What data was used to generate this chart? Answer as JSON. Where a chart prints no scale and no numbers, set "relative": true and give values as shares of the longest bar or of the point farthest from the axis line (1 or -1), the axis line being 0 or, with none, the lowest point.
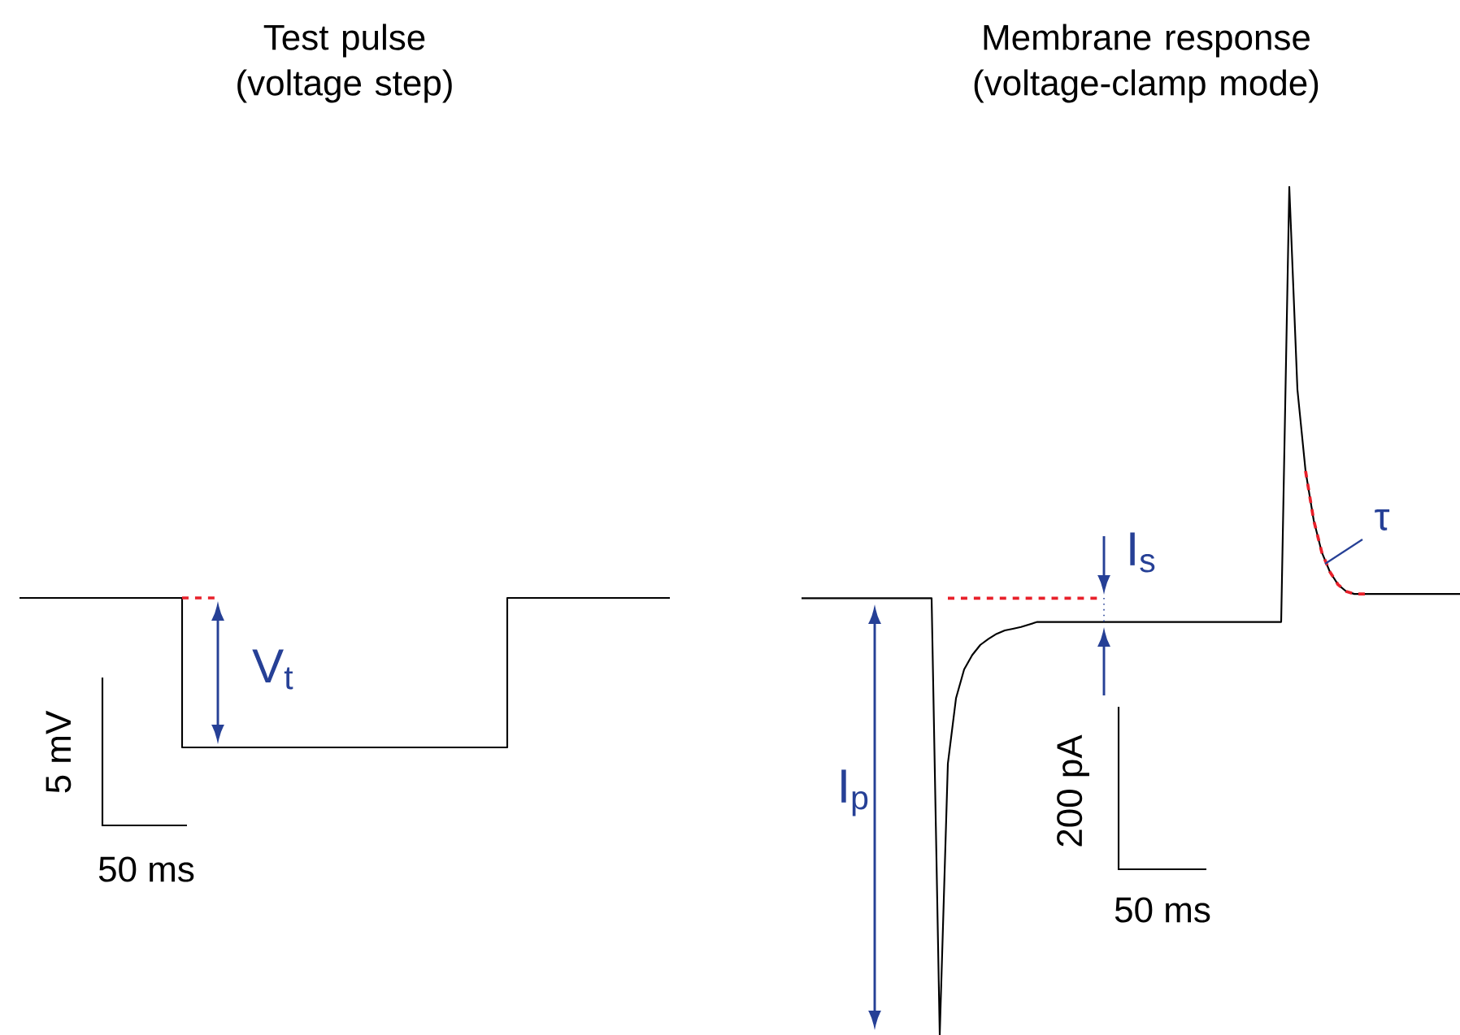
{
  "chart_data": [
    {
      "type": "line",
      "title": "Test pulse (voltage step)",
      "relative": true,
      "categories": [
        null,
        null,
        null,
        null,
        null,
        null,
        null,
        null,
        null,
        null,
        null,
        null,
        null,
        null,
        null,
        null,
        null,
        null,
        null,
        null,
        null
      ],
      "series": [
        {
          "type": "step",
          "color": "#000000",
          "line_style": "solid",
          "values": [
            1,
            1,
            1,
            1,
            1,
            0,
            0,
            0,
            0,
            0,
            0,
            0,
            0,
            0,
            0,
            1,
            1,
            1,
            1,
            1,
            1
          ]
        },
        {
          "type": "line",
          "color": "#e8202a",
          "line_style": "dashed",
          "values": [
            null,
            null,
            null,
            null,
            null,
            1,
            1,
            null,
            null,
            null,
            null,
            null,
            null,
            null,
            null,
            null,
            null,
            null,
            null,
            null,
            null
          ]
        }
      ],
      "annotations": [
        "V$_{t}$",
        "5 mV",
        "50 ms"
      ]
    },
    {
      "type": "line",
      "title": "Membrane response (voltage-clamp mode)",
      "relative": true,
      "categories": [
        null,
        null,
        null,
        null,
        null,
        null,
        null,
        null,
        null,
        null,
        null,
        null,
        null,
        null,
        null,
        null,
        null,
        null,
        null,
        null,
        null,
        null,
        null,
        null,
        null,
        null,
        null,
        null,
        null,
        null,
        null,
        null,
        null,
        null,
        null,
        null,
        null,
        null,
        null,
        null,
        null,
        null,
        null,
        null,
        null,
        null,
        null,
        null,
        null,
        null,
        null,
        null,
        null,
        null,
        null,
        null,
        null,
        null,
        null,
        null,
        null,
        null,
        null,
        null,
        null,
        null,
        null,
        null,
        null,
        null,
        null,
        null,
        null,
        null,
        null,
        null,
        null,
        null,
        null,
        null,
        null,
        null
      ],
      "series": [
        {
          "type": "line",
          "color": "#000000",
          "line_style": "solid",
          "values": [
            0.515,
            0.515,
            0.515,
            0.515,
            0.515,
            0.515,
            0.515,
            0.515,
            0.515,
            0.515,
            0.515,
            0.515,
            0.515,
            0.515,
            0.515,
            0.515,
            0.515,
            0,
            0.32,
            0.397,
            0.431,
            0.448,
            0.46,
            0.467,
            0.473,
            0.477,
            0.479,
            0.481,
            0.484,
            0.487,
            0.487,
            0.487,
            0.487,
            0.487,
            0.487,
            0.487,
            0.487,
            0.487,
            0.487,
            0.487,
            0.487,
            0.487,
            0.487,
            0.487,
            0.487,
            0.487,
            0.487,
            0.487,
            0.487,
            0.487,
            0.487,
            0.487,
            0.487,
            0.487,
            0.487,
            0.487,
            0.487,
            0.487,
            0.487,
            0.487,
            1,
            0.761,
            0.665,
            0.607,
            0.569,
            0.546,
            0.531,
            0.523,
            0.52,
            0.52,
            0.52,
            0.52,
            0.52,
            0.52,
            0.52,
            0.52,
            0.52,
            0.52,
            0.52,
            0.52,
            0.52,
            0.52
          ]
        },
        {
          "type": "line",
          "color": "#e8202a",
          "line_style": "dashed",
          "values": [
            null,
            null,
            null,
            null,
            null,
            null,
            null,
            null,
            null,
            null,
            null,
            null,
            null,
            null,
            null,
            null,
            null,
            null,
            null,
            null,
            null,
            null,
            null,
            null,
            null,
            null,
            null,
            null,
            null,
            null,
            null,
            null,
            null,
            null,
            null,
            null,
            null,
            null,
            null,
            null,
            null,
            null,
            null,
            null,
            null,
            null,
            null,
            null,
            null,
            null,
            null,
            null,
            null,
            null,
            null,
            null,
            null,
            null,
            null,
            null,
            null,
            null,
            0.665,
            0.607,
            0.569,
            0.546,
            0.531,
            0.523,
            0.52,
            0.52,
            0.52,
            null,
            null,
            null,
            null,
            null,
            null,
            null,
            null,
            null,
            null,
            null
          ]
        },
        {
          "type": "line",
          "color": "#e8202a",
          "line_style": "dashed",
          "values": [
            null,
            null,
            null,
            null,
            null,
            null,
            null,
            null,
            null,
            null,
            null,
            null,
            null,
            null,
            null,
            null,
            null,
            null,
            0.515,
            0.515,
            0.515,
            0.515,
            0.515,
            0.515,
            0.515,
            0.515,
            0.515,
            0.515,
            0.515,
            0.515,
            0.515,
            0.515,
            0.515,
            0.515,
            0.515,
            0.515,
            0.515,
            0.515,
            null,
            null,
            null,
            null,
            null,
            null,
            null,
            null,
            null,
            null,
            null,
            null,
            null,
            null,
            null,
            null,
            null,
            null,
            null,
            null,
            null,
            null,
            null,
            null,
            null,
            null,
            null,
            null,
            null,
            null,
            null,
            null,
            null,
            null,
            null,
            null,
            null,
            null,
            null,
            null,
            null,
            null,
            null,
            null
          ]
        }
      ],
      "annotations": [
        "I$_{s}$",
        "I$_{p}$",
        "τ",
        "200 pA",
        "50 ms"
      ]
    }
  ]
}
